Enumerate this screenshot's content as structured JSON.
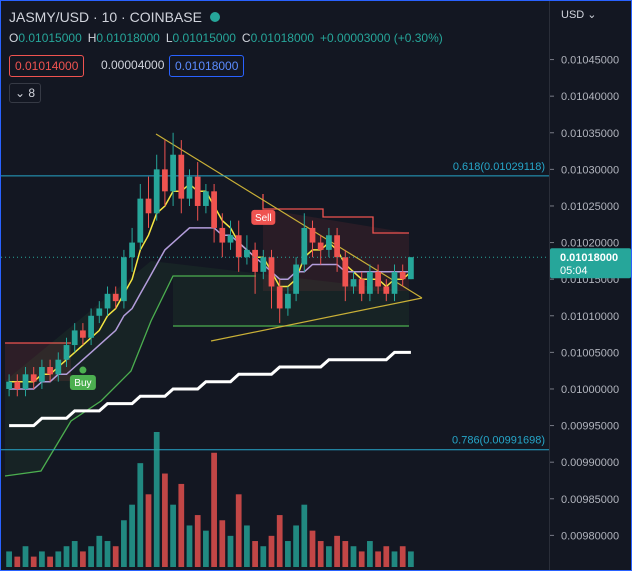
{
  "header": {
    "symbol": "JASMY/USD",
    "interval": "10",
    "exchange": "COINBASE",
    "ohlc": [
      {
        "key": "O",
        "value": "0.01015000"
      },
      {
        "key": "H",
        "value": "0.01018000"
      },
      {
        "key": "L",
        "value": "0.01015000"
      },
      {
        "key": "C",
        "value": "0.01018000"
      }
    ],
    "change": "+0.00003000 (+0.30%)",
    "sell_box": "0.01014000",
    "spread_box": "0.00004000",
    "buy_box": "0.01018000",
    "indicator_count": "8",
    "currency": "USD"
  },
  "chart_data": {
    "type": "candlestick",
    "ylim": [
      0.009765,
      0.01053
    ],
    "yticks": [
      {
        "value": 0.01045,
        "label": "0.01045000"
      },
      {
        "value": 0.0104,
        "label": "0.01040000"
      },
      {
        "value": 0.01035,
        "label": "0.01035000"
      },
      {
        "value": 0.0103,
        "label": "0.01030000"
      },
      {
        "value": 0.01025,
        "label": "0.01025000"
      },
      {
        "value": 0.0102,
        "label": "0.01020000"
      },
      {
        "value": 0.01015,
        "label": "0.01015000"
      },
      {
        "value": 0.0101,
        "label": "0.01010000"
      },
      {
        "value": 0.01005,
        "label": "0.01005000"
      },
      {
        "value": 0.01,
        "label": "0.01000000"
      },
      {
        "value": 0.00995,
        "label": "0.00995000"
      },
      {
        "value": 0.0099,
        "label": "0.00990000"
      },
      {
        "value": 0.00985,
        "label": "0.00985000"
      },
      {
        "value": 0.0098,
        "label": "0.00980000"
      }
    ],
    "up_color": "#26a69a",
    "down_color": "#ef5350",
    "open": [
      0.01,
      0.01001,
      0.01,
      0.01002,
      0.01001,
      0.01003,
      0.01002,
      0.01004,
      0.01006,
      0.01008,
      0.01007,
      0.0101,
      0.01011,
      0.01013,
      0.01012,
      0.01018,
      0.0102,
      0.01026,
      0.01024,
      0.0103,
      0.01027,
      0.01032,
      0.01026,
      0.01029,
      0.01025,
      0.01027,
      0.01022,
      0.0102,
      0.01021,
      0.01018,
      0.01019,
      0.01016,
      0.01018,
      0.01014,
      0.01011,
      0.01013,
      0.01017,
      0.01022,
      0.0102,
      0.01019,
      0.01021,
      0.01018,
      0.01014,
      0.01015,
      0.01013,
      0.01016,
      0.01014,
      0.01013,
      0.01016,
      0.01015
    ],
    "high": [
      0.01002,
      0.01002,
      0.01003,
      0.01003,
      0.01004,
      0.01004,
      0.01005,
      0.01007,
      0.01009,
      0.01009,
      0.01011,
      0.01012,
      0.01014,
      0.01014,
      0.01019,
      0.01022,
      0.01028,
      0.01029,
      0.01032,
      0.01034,
      0.01035,
      0.01034,
      0.0103,
      0.01031,
      0.01028,
      0.01028,
      0.01024,
      0.01023,
      0.01023,
      0.01021,
      0.0102,
      0.01019,
      0.01019,
      0.01015,
      0.01014,
      0.01018,
      0.01024,
      0.01023,
      0.01021,
      0.01022,
      0.01022,
      0.01019,
      0.01016,
      0.01016,
      0.01017,
      0.01017,
      0.01015,
      0.01017,
      0.01017,
      0.01018
    ],
    "low": [
      0.00999,
      0.00999,
      0.00999,
      0.01,
      0.01,
      0.01001,
      0.01001,
      0.01003,
      0.01005,
      0.01006,
      0.01006,
      0.01009,
      0.0101,
      0.01011,
      0.01011,
      0.01016,
      0.01019,
      0.01022,
      0.01023,
      0.01025,
      0.01025,
      0.01024,
      0.01025,
      0.01023,
      0.01024,
      0.0102,
      0.01018,
      0.01019,
      0.01016,
      0.01017,
      0.01013,
      0.01015,
      0.01011,
      0.01009,
      0.0101,
      0.01012,
      0.01016,
      0.01018,
      0.01017,
      0.01018,
      0.01016,
      0.01012,
      0.01013,
      0.01012,
      0.01012,
      0.01013,
      0.01012,
      0.01012,
      0.01014,
      0.01015
    ],
    "close": [
      0.01001,
      0.01,
      0.01002,
      0.01001,
      0.01003,
      0.01002,
      0.01004,
      0.01006,
      0.01008,
      0.01007,
      0.0101,
      0.01011,
      0.01013,
      0.01012,
      0.01018,
      0.0102,
      0.01026,
      0.01024,
      0.0103,
      0.01027,
      0.01032,
      0.01026,
      0.01029,
      0.01025,
      0.01027,
      0.01022,
      0.0102,
      0.01021,
      0.01018,
      0.01019,
      0.01016,
      0.01018,
      0.01014,
      0.01011,
      0.01013,
      0.01017,
      0.01022,
      0.0102,
      0.01019,
      0.01021,
      0.01018,
      0.01014,
      0.01015,
      0.01013,
      0.01016,
      0.01014,
      0.01013,
      0.01016,
      0.01015,
      0.01018
    ],
    "volume": [
      3,
      2,
      4,
      2,
      3,
      2,
      3,
      4,
      5,
      3,
      4,
      6,
      5,
      4,
      9,
      12,
      20,
      14,
      26,
      18,
      12,
      16,
      8,
      10,
      7,
      22,
      9,
      6,
      14,
      8,
      5,
      4,
      6,
      10,
      5,
      8,
      12,
      7,
      5,
      4,
      6,
      5,
      4,
      3,
      5,
      3,
      4,
      3,
      4,
      3
    ],
    "series": [
      {
        "color": "#f5e642",
        "width": 1.5,
        "values": [
          0.01001,
          0.01001,
          0.01001,
          0.01001,
          0.01002,
          0.01002,
          0.01003,
          0.01004,
          0.01005,
          0.01006,
          0.01007,
          0.01008,
          0.0101,
          0.01011,
          0.01013,
          0.01015,
          0.01019,
          0.01021,
          0.01024,
          0.01025,
          0.01027,
          0.01027,
          0.01028,
          0.01027,
          0.01027,
          0.01025,
          0.01023,
          0.01022,
          0.0102,
          0.01019,
          0.01018,
          0.01018,
          0.01016,
          0.01014,
          0.01014,
          0.01015,
          0.01018,
          0.01019,
          0.01019,
          0.0102,
          0.01019,
          0.01017,
          0.01016,
          0.01015,
          0.01015,
          0.01015,
          0.01014,
          0.01015,
          0.01015,
          0.01016
        ]
      },
      {
        "color": "#b39ddb",
        "width": 1.5,
        "values": [
          0.01,
          0.01,
          0.01,
          0.01,
          0.01001,
          0.01001,
          0.01002,
          0.01002,
          0.01003,
          0.01004,
          0.01005,
          0.01006,
          0.01007,
          0.01008,
          0.0101,
          0.01011,
          0.01013,
          0.01015,
          0.01017,
          0.01019,
          0.0102,
          0.01021,
          0.01022,
          0.01022,
          0.01022,
          0.01022,
          0.01021,
          0.01021,
          0.0102,
          0.01019,
          0.01018,
          0.01017,
          0.01016,
          0.01015,
          0.01015,
          0.01016,
          0.01016,
          0.01017,
          0.01017,
          0.01017,
          0.01017,
          0.01016,
          0.01016,
          0.01016,
          0.01016,
          0.01016,
          0.01016,
          0.01016,
          0.01016,
          0.01016
        ]
      },
      {
        "color": "#ffffff",
        "width": 3,
        "values": [
          0.00995,
          0.00995,
          0.00995,
          0.00995,
          0.00996,
          0.00996,
          0.00996,
          0.00996,
          0.00997,
          0.00997,
          0.00997,
          0.00997,
          0.00998,
          0.00998,
          0.00998,
          0.00998,
          0.00999,
          0.00999,
          0.00999,
          0.00999,
          0.01,
          0.01,
          0.01,
          0.01,
          0.01001,
          0.01001,
          0.01001,
          0.01001,
          0.01002,
          0.01002,
          0.01002,
          0.01002,
          0.01002,
          0.01003,
          0.01003,
          0.01003,
          0.01003,
          0.01003,
          0.01003,
          0.01004,
          0.01004,
          0.01004,
          0.01004,
          0.01004,
          0.01004,
          0.01004,
          0.01004,
          0.01005,
          0.01005,
          0.01005
        ]
      }
    ],
    "fib_levels": [
      {
        "label": "0.618(0.01029118)",
        "value": 0.01029118
      },
      {
        "label": "0.786(0.00991698)",
        "value": 0.00991698
      }
    ],
    "price_tag": {
      "label": "0.01018000",
      "countdown": "05:04"
    },
    "signals": {
      "sell": "Sell",
      "buy": "Buy"
    }
  }
}
